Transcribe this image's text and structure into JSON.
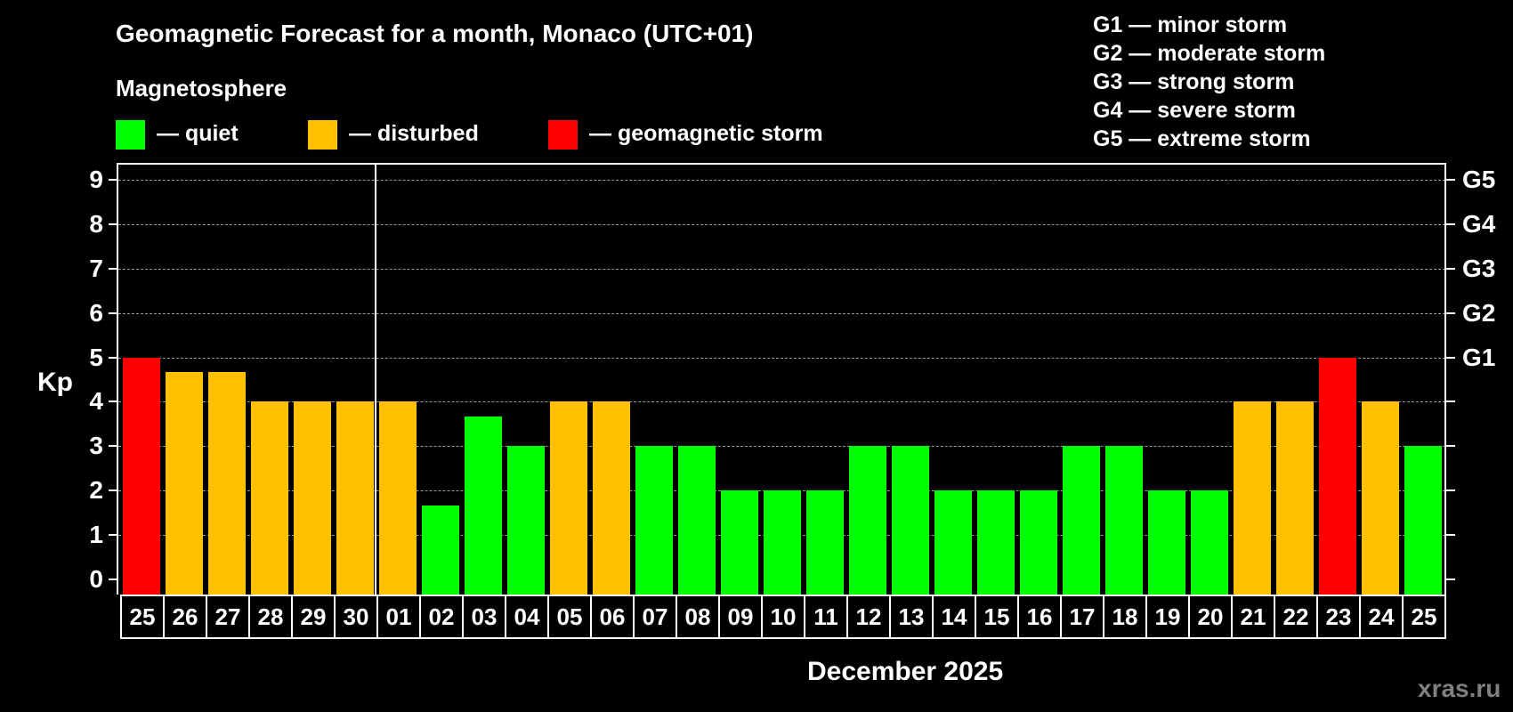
{
  "title": "Geomagnetic Forecast for a month, Monaco (UTC+01)",
  "subtitle": "Magnetosphere",
  "legend": [
    {
      "label": "— quiet",
      "color": "#00FF00"
    },
    {
      "label": "— disturbed",
      "color": "#FFC000"
    },
    {
      "label": "— geomagnetic storm",
      "color": "#FF0000"
    }
  ],
  "storm_scale": [
    "G1 — minor storm",
    "G2 — moderate storm",
    "G3 — strong storm",
    "G4 — severe storm",
    "G5 — extreme storm"
  ],
  "y_axis_label": "Kp",
  "y_ticks": [
    "0",
    "1",
    "2",
    "3",
    "4",
    "5",
    "6",
    "7",
    "8",
    "9"
  ],
  "right_ticks": {
    "5": "G1",
    "6": "G2",
    "7": "G3",
    "8": "G4",
    "9": "G5"
  },
  "x_label": "December 2025",
  "watermark": "xras.ru",
  "chart_data": {
    "type": "bar",
    "title": "Geomagnetic Forecast for a month, Monaco (UTC+01)",
    "xlabel": "December 2025",
    "ylabel": "Kp",
    "ylim": [
      0,
      9
    ],
    "grid": true,
    "legend_position": "top",
    "categories": [
      "25",
      "26",
      "27",
      "28",
      "29",
      "30",
      "01",
      "02",
      "03",
      "04",
      "05",
      "06",
      "07",
      "08",
      "09",
      "10",
      "11",
      "12",
      "13",
      "14",
      "15",
      "16",
      "17",
      "18",
      "19",
      "20",
      "21",
      "22",
      "23",
      "24",
      "25"
    ],
    "values": [
      5,
      4.67,
      4.67,
      4,
      4,
      4,
      4,
      1.67,
      3.67,
      3,
      4,
      4,
      3,
      3,
      2,
      2,
      2,
      3,
      3,
      2,
      2,
      2,
      3,
      3,
      2,
      2,
      4,
      4,
      5,
      4,
      3
    ],
    "status": [
      "storm",
      "disturbed",
      "disturbed",
      "disturbed",
      "disturbed",
      "disturbed",
      "disturbed",
      "quiet",
      "quiet",
      "quiet",
      "disturbed",
      "disturbed",
      "quiet",
      "quiet",
      "quiet",
      "quiet",
      "quiet",
      "quiet",
      "quiet",
      "quiet",
      "quiet",
      "quiet",
      "quiet",
      "quiet",
      "quiet",
      "quiet",
      "disturbed",
      "disturbed",
      "storm",
      "disturbed",
      "quiet"
    ],
    "status_colors": {
      "quiet": "#00FF00",
      "disturbed": "#FFC000",
      "storm": "#FF0000"
    },
    "secondary_y_labels": {
      "5": "G1",
      "6": "G2",
      "7": "G3",
      "8": "G4",
      "9": "G5"
    },
    "month_divider_after_index": 5
  }
}
